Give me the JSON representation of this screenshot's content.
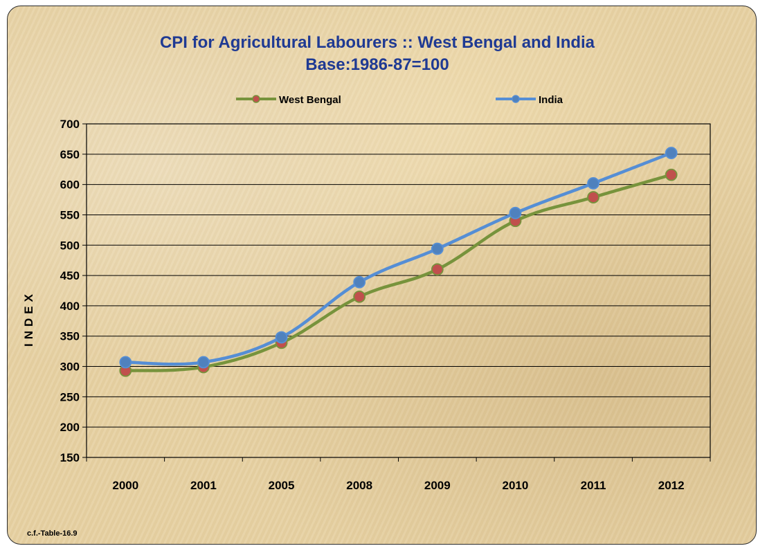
{
  "chart_data": {
    "type": "line",
    "title": "CPI for Agricultural Labourers :: West Bengal and India",
    "subtitle": "Base:1986-87=100",
    "xlabel": "",
    "ylabel": "INDEX",
    "categories": [
      "2000",
      "2001",
      "2005",
      "2008",
      "2009",
      "2010",
      "2011",
      "2012"
    ],
    "series": [
      {
        "name": "West Bengal",
        "values": [
          293,
          299,
          339,
          415,
          460,
          540,
          579,
          616
        ],
        "color": "#77933c",
        "marker_color": "#c0504d"
      },
      {
        "name": "India",
        "values": [
          307,
          307,
          348,
          439,
          494,
          553,
          602,
          652
        ],
        "color": "#558ed5",
        "marker_color": "#4f81bd"
      }
    ],
    "ylim": [
      150,
      700
    ],
    "yticks": [
      150,
      200,
      250,
      300,
      350,
      400,
      450,
      500,
      550,
      600,
      650,
      700
    ],
    "grid": true,
    "legend_position": "top"
  },
  "footnote": "c.f.-Table-16.9"
}
